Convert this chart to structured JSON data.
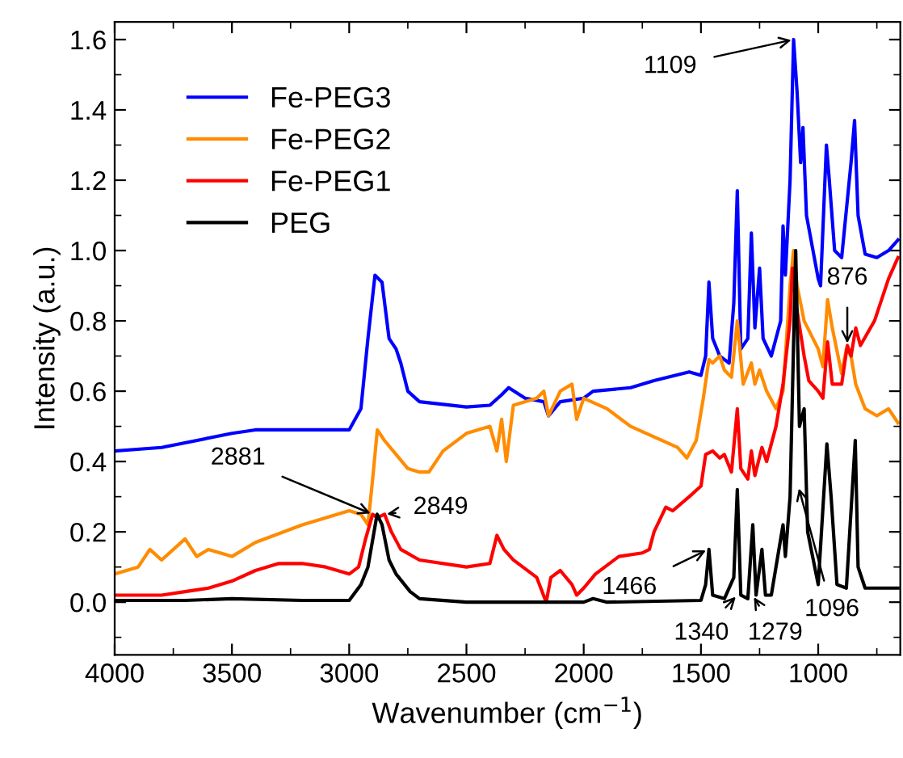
{
  "chart_data": {
    "type": "line",
    "xlabel": "Wavenumber (cm$^{−1}$)",
    "ylabel": "Intensity (a.u.)",
    "xlim": [
      4000,
      650
    ],
    "ylim": [
      -0.15,
      1.65
    ],
    "xticks": [
      4000,
      3500,
      3000,
      2500,
      2000,
      1500,
      1000
    ],
    "yticks": [
      {
        "value": 0,
        "label": "0.0"
      },
      0.2,
      0.4,
      0.6,
      0.8,
      {
        "value": 1,
        "label": "1.0"
      },
      1.2,
      1.4,
      1.6
    ],
    "grid": false,
    "legend": "top left",
    "marker": "none",
    "line_style": "solid",
    "series": [
      {
        "name": "Fe-PEG3",
        "color": "#0000ff",
        "x": [
          4000,
          3800,
          3500,
          3400,
          3000,
          2950,
          2920,
          2890,
          2860,
          2830,
          2800,
          2780,
          2750,
          2700,
          2500,
          2400,
          2350,
          2320,
          2250,
          2170,
          2150,
          2100,
          2000,
          1960,
          1800,
          1700,
          1550,
          1500,
          1480,
          1466,
          1450,
          1420,
          1380,
          1360,
          1345,
          1330,
          1300,
          1285,
          1270,
          1250,
          1235,
          1200,
          1160,
          1150,
          1140,
          1120,
          1105,
          1090,
          1075,
          1065,
          1050,
          1000,
          990,
          965,
          955,
          930,
          900,
          860,
          845,
          830,
          800,
          750,
          700,
          660
        ],
        "values": [
          0.43,
          0.44,
          0.48,
          0.49,
          0.49,
          0.55,
          0.75,
          0.93,
          0.91,
          0.75,
          0.72,
          0.68,
          0.6,
          0.57,
          0.555,
          0.56,
          0.59,
          0.61,
          0.58,
          0.57,
          0.53,
          0.57,
          0.58,
          0.6,
          0.61,
          0.63,
          0.655,
          0.645,
          0.7,
          0.91,
          0.75,
          0.7,
          0.68,
          0.85,
          1.17,
          0.72,
          0.75,
          1.05,
          0.78,
          0.95,
          0.75,
          0.7,
          0.8,
          1.07,
          0.93,
          1.2,
          1.6,
          1.45,
          1.25,
          1.35,
          1.1,
          0.92,
          0.9,
          1.3,
          1.22,
          1.0,
          0.98,
          1.25,
          1.37,
          1.1,
          0.99,
          0.98,
          1.0,
          1.03
        ]
      },
      {
        "name": "Fe-PEG2",
        "color": "#ff8c00",
        "x": [
          4000,
          3900,
          3850,
          3800,
          3700,
          3650,
          3600,
          3500,
          3400,
          3200,
          3000,
          2950,
          2920,
          2900,
          2880,
          2850,
          2800,
          2750,
          2700,
          2660,
          2600,
          2500,
          2400,
          2370,
          2350,
          2330,
          2300,
          2200,
          2170,
          2150,
          2100,
          2050,
          2030,
          2000,
          1900,
          1800,
          1700,
          1600,
          1560,
          1520,
          1490,
          1466,
          1450,
          1420,
          1400,
          1370,
          1345,
          1320,
          1285,
          1270,
          1250,
          1220,
          1180,
          1150,
          1120,
          1105,
          1090,
          1060,
          1000,
          980,
          960,
          940,
          900,
          880,
          860,
          840,
          800,
          750,
          700,
          660
        ],
        "values": [
          0.08,
          0.1,
          0.15,
          0.12,
          0.18,
          0.13,
          0.15,
          0.13,
          0.17,
          0.22,
          0.26,
          0.25,
          0.22,
          0.35,
          0.49,
          0.46,
          0.42,
          0.38,
          0.37,
          0.37,
          0.43,
          0.48,
          0.5,
          0.43,
          0.52,
          0.4,
          0.56,
          0.58,
          0.6,
          0.53,
          0.6,
          0.62,
          0.52,
          0.58,
          0.55,
          0.5,
          0.47,
          0.44,
          0.41,
          0.46,
          0.58,
          0.69,
          0.68,
          0.7,
          0.66,
          0.64,
          0.8,
          0.62,
          0.68,
          0.62,
          0.66,
          0.6,
          0.55,
          0.6,
          0.9,
          1.0,
          0.9,
          0.8,
          0.72,
          0.67,
          0.86,
          0.78,
          0.65,
          0.72,
          0.7,
          0.62,
          0.55,
          0.53,
          0.55,
          0.51
        ]
      },
      {
        "name": "Fe-PEG1",
        "color": "#ff0000",
        "x": [
          4000,
          3800,
          3700,
          3600,
          3500,
          3400,
          3300,
          3200,
          3100,
          3000,
          2960,
          2930,
          2900,
          2881,
          2849,
          2820,
          2780,
          2700,
          2500,
          2400,
          2370,
          2340,
          2300,
          2200,
          2160,
          2140,
          2100,
          2050,
          2030,
          2000,
          1950,
          1850,
          1750,
          1720,
          1700,
          1650,
          1620,
          1550,
          1500,
          1480,
          1450,
          1420,
          1400,
          1370,
          1345,
          1330,
          1300,
          1285,
          1270,
          1240,
          1220,
          1180,
          1150,
          1120,
          1110,
          1095,
          1060,
          1040,
          1000,
          980,
          960,
          940,
          900,
          876,
          860,
          840,
          820,
          760,
          700,
          660
        ],
        "values": [
          0.02,
          0.02,
          0.03,
          0.04,
          0.06,
          0.09,
          0.11,
          0.11,
          0.1,
          0.08,
          0.1,
          0.18,
          0.25,
          0.24,
          0.25,
          0.2,
          0.15,
          0.12,
          0.1,
          0.11,
          0.19,
          0.15,
          0.12,
          0.07,
          0.0,
          0.07,
          0.09,
          0.05,
          0.02,
          0.04,
          0.08,
          0.13,
          0.14,
          0.15,
          0.2,
          0.27,
          0.26,
          0.3,
          0.33,
          0.42,
          0.43,
          0.41,
          0.42,
          0.37,
          0.55,
          0.38,
          0.35,
          0.43,
          0.36,
          0.44,
          0.4,
          0.5,
          0.62,
          0.8,
          0.95,
          0.85,
          0.7,
          0.63,
          0.6,
          0.58,
          0.74,
          0.62,
          0.62,
          0.73,
          0.7,
          0.78,
          0.73,
          0.8,
          0.92,
          0.98
        ]
      },
      {
        "name": "PEG",
        "color": "#000000",
        "x": [
          4000,
          3700,
          3500,
          3200,
          3000,
          2950,
          2920,
          2881,
          2860,
          2830,
          2800,
          2740,
          2700,
          2500,
          2000,
          1960,
          1900,
          1500,
          1480,
          1466,
          1450,
          1400,
          1360,
          1345,
          1330,
          1300,
          1279,
          1265,
          1240,
          1225,
          1200,
          1150,
          1140,
          1120,
          1096,
          1080,
          1060,
          1045,
          1000,
          963,
          945,
          920,
          880,
          842,
          830,
          800,
          660
        ],
        "values": [
          0.005,
          0.005,
          0.01,
          0.005,
          0.005,
          0.05,
          0.1,
          0.25,
          0.22,
          0.12,
          0.08,
          0.03,
          0.01,
          0.0,
          0.0,
          0.01,
          0.0,
          0.005,
          0.05,
          0.15,
          0.02,
          0.01,
          0.07,
          0.32,
          0.02,
          0.01,
          0.22,
          0.02,
          0.15,
          0.02,
          0.02,
          0.22,
          0.13,
          0.3,
          1.0,
          0.5,
          0.55,
          0.2,
          0.05,
          0.45,
          0.3,
          0.05,
          0.04,
          0.46,
          0.1,
          0.04,
          0.04
        ]
      }
    ],
    "annotations": [
      {
        "text": "1109",
        "x": 1105,
        "y": 1.6
      },
      {
        "text": "2881",
        "x": 2900,
        "y": 0.25
      },
      {
        "text": "2849",
        "x": 2849,
        "y": 0.25
      },
      {
        "text": "1466",
        "x": 1470,
        "y": 0.15
      },
      {
        "text": "1340",
        "x": 1345,
        "y": 0.02
      },
      {
        "text": "1279",
        "x": 1279,
        "y": 0.02
      },
      {
        "text": "1096",
        "x": 1085,
        "y": 0.33
      },
      {
        "text": "876",
        "x": 876,
        "y": 0.73
      }
    ]
  }
}
